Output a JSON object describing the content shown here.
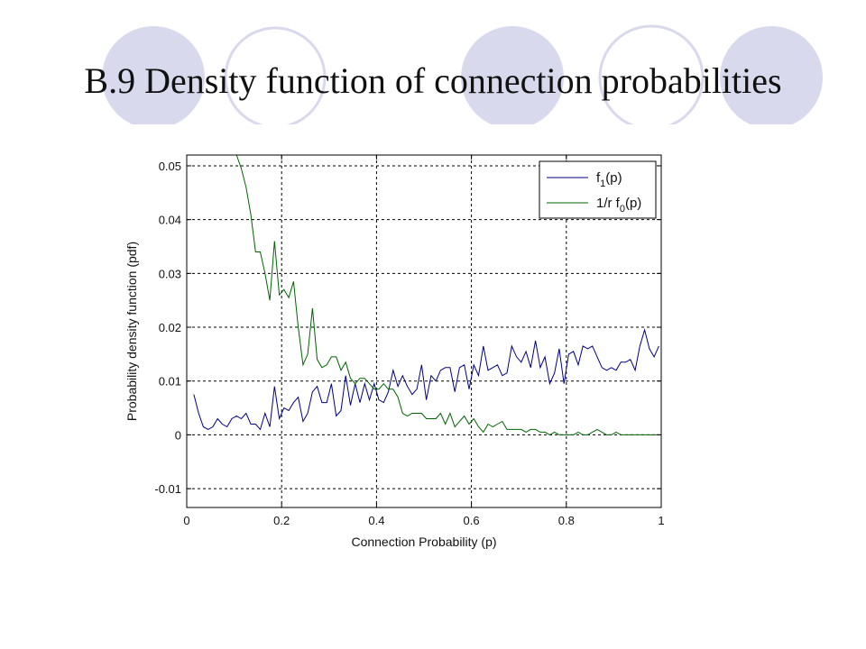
{
  "slide": {
    "title": "B.9 Density function of connection probabilities"
  },
  "decor": {
    "circle_fill": "#d9d9ee",
    "circle_outline": "#d9d9ee"
  },
  "chart_data": {
    "type": "line",
    "xlabel": "Connection Probability (p)",
    "ylabel": "Probability density function (pdf)",
    "xlim": [
      0,
      1
    ],
    "ylim": [
      -0.0135,
      0.052
    ],
    "xticks": [
      0,
      0.2,
      0.4,
      0.6,
      0.8,
      1
    ],
    "xtick_labels": [
      "0",
      "0.2",
      "0.4",
      "0.6",
      "0.8",
      "1"
    ],
    "yticks": [
      -0.01,
      0,
      0.01,
      0.02,
      0.03,
      0.04,
      0.05
    ],
    "ytick_labels": [
      "-0.01",
      "0",
      "0.01",
      "0.02",
      "0.03",
      "0.04",
      "0.05"
    ],
    "grid": true,
    "legend_position": "top-right",
    "series": [
      {
        "name": "f1(p)",
        "legend_main": "f",
        "legend_sub": "1",
        "legend_tail": "(p)",
        "color": "#000080",
        "x": [
          0.015,
          0.025,
          0.035,
          0.045,
          0.055,
          0.065,
          0.075,
          0.085,
          0.095,
          0.105,
          0.115,
          0.125,
          0.135,
          0.145,
          0.155,
          0.165,
          0.175,
          0.185,
          0.195,
          0.205,
          0.215,
          0.225,
          0.235,
          0.245,
          0.255,
          0.265,
          0.275,
          0.285,
          0.295,
          0.305,
          0.315,
          0.325,
          0.335,
          0.345,
          0.355,
          0.365,
          0.375,
          0.385,
          0.395,
          0.405,
          0.415,
          0.425,
          0.435,
          0.445,
          0.455,
          0.465,
          0.475,
          0.485,
          0.495,
          0.505,
          0.515,
          0.525,
          0.535,
          0.545,
          0.555,
          0.565,
          0.575,
          0.585,
          0.595,
          0.605,
          0.615,
          0.625,
          0.635,
          0.645,
          0.655,
          0.665,
          0.675,
          0.685,
          0.695,
          0.705,
          0.715,
          0.725,
          0.735,
          0.745,
          0.755,
          0.765,
          0.775,
          0.785,
          0.795,
          0.805,
          0.815,
          0.825,
          0.835,
          0.845,
          0.855,
          0.865,
          0.875,
          0.885,
          0.895,
          0.905,
          0.915,
          0.925,
          0.935,
          0.945,
          0.955,
          0.965,
          0.975,
          0.985,
          0.995
        ],
        "y": [
          0.0075,
          0.004,
          0.0015,
          0.001,
          0.0015,
          0.003,
          0.002,
          0.0015,
          0.003,
          0.0035,
          0.003,
          0.004,
          0.002,
          0.002,
          0.001,
          0.004,
          0.0015,
          0.009,
          0.003,
          0.005,
          0.0045,
          0.006,
          0.007,
          0.0025,
          0.004,
          0.008,
          0.009,
          0.006,
          0.006,
          0.0095,
          0.0035,
          0.0045,
          0.011,
          0.0055,
          0.0095,
          0.006,
          0.0095,
          0.0065,
          0.0095,
          0.0065,
          0.006,
          0.008,
          0.012,
          0.009,
          0.011,
          0.009,
          0.0075,
          0.0085,
          0.013,
          0.0065,
          0.011,
          0.01,
          0.012,
          0.0125,
          0.0125,
          0.008,
          0.0125,
          0.013,
          0.0085,
          0.013,
          0.011,
          0.0165,
          0.012,
          0.0125,
          0.013,
          0.011,
          0.0115,
          0.0165,
          0.0145,
          0.0135,
          0.0155,
          0.0125,
          0.0175,
          0.0125,
          0.0145,
          0.0095,
          0.0115,
          0.016,
          0.0095,
          0.015,
          0.0155,
          0.013,
          0.0165,
          0.016,
          0.0165,
          0.0145,
          0.0125,
          0.012,
          0.0125,
          0.012,
          0.0135,
          0.0135,
          0.014,
          0.012,
          0.0165,
          0.0195,
          0.016,
          0.0145,
          0.0165
        ],
        "draw_x": [
          0.015,
          0.02,
          0.03,
          0.04,
          0.05,
          0.06,
          0.07,
          0.08,
          0.09,
          0.1,
          0.11,
          0.12,
          0.13,
          0.14,
          0.15,
          0.16,
          0.17,
          0.18,
          0.19,
          0.2,
          0.21,
          0.22,
          0.23,
          0.24,
          0.25,
          0.26,
          0.27,
          0.28,
          0.29,
          0.3,
          0.31,
          0.32,
          0.33,
          0.34,
          0.35,
          0.36,
          0.37,
          0.38,
          0.39,
          0.4,
          0.41,
          0.42,
          0.43,
          0.44,
          0.45,
          0.46,
          0.47,
          0.48,
          0.49,
          0.5,
          0.51,
          0.52,
          0.53,
          0.54,
          0.55,
          0.56,
          0.57,
          0.58,
          0.59,
          0.6,
          0.61,
          0.62,
          0.63,
          0.64,
          0.65,
          0.66,
          0.67,
          0.68,
          0.69,
          0.7,
          0.71,
          0.72,
          0.73,
          0.74,
          0.75,
          0.76,
          0.77,
          0.78,
          0.79,
          0.8,
          0.81,
          0.82,
          0.83,
          0.84,
          0.85,
          0.86,
          0.87,
          0.88,
          0.89,
          0.9,
          0.91,
          0.92,
          0.93,
          0.94,
          0.95,
          0.96,
          0.97,
          0.98,
          0.99,
          1.0
        ]
      },
      {
        "name": "1/r f0(p)",
        "legend_main": "1/r f",
        "legend_sub": "0",
        "legend_tail": "(p)",
        "color": "#006400",
        "x": [
          0.105,
          0.115,
          0.125,
          0.135,
          0.145,
          0.155,
          0.165,
          0.175,
          0.185,
          0.195,
          0.205,
          0.215,
          0.225,
          0.235,
          0.245,
          0.255,
          0.265,
          0.275,
          0.285,
          0.295,
          0.305,
          0.315,
          0.325,
          0.335,
          0.345,
          0.355,
          0.365,
          0.375,
          0.385,
          0.395,
          0.405,
          0.415,
          0.425,
          0.435,
          0.445,
          0.455,
          0.465,
          0.475,
          0.485,
          0.495,
          0.505,
          0.515,
          0.525,
          0.535,
          0.545,
          0.555,
          0.565,
          0.575,
          0.585,
          0.595,
          0.605,
          0.615,
          0.625,
          0.635,
          0.645,
          0.655,
          0.665,
          0.675,
          0.685,
          0.695,
          0.705,
          0.715,
          0.725,
          0.735,
          0.745,
          0.755,
          0.765,
          0.775,
          0.785,
          0.795,
          0.805,
          0.815,
          0.825,
          0.835,
          0.845,
          0.855,
          0.865,
          0.875,
          0.885,
          0.895,
          0.905,
          0.915,
          0.925,
          0.935,
          0.945,
          0.955,
          0.965,
          0.975,
          0.985,
          0.995
        ],
        "y": [
          0.052,
          0.0495,
          0.046,
          0.041,
          0.034,
          0.034,
          0.03,
          0.025,
          0.036,
          0.026,
          0.027,
          0.0255,
          0.0285,
          0.02,
          0.013,
          0.015,
          0.0235,
          0.014,
          0.0125,
          0.013,
          0.0145,
          0.0145,
          0.012,
          0.0135,
          0.0105,
          0.0095,
          0.0105,
          0.0105,
          0.0095,
          0.0085,
          0.0085,
          0.0095,
          0.0085,
          0.0085,
          0.007,
          0.004,
          0.0035,
          0.004,
          0.004,
          0.004,
          0.003,
          0.003,
          0.003,
          0.004,
          0.002,
          0.004,
          0.0015,
          0.0025,
          0.0035,
          0.002,
          0.003,
          0.0015,
          0.0005,
          0.002,
          0.0015,
          0.002,
          0.0025,
          0.001,
          0.001,
          0.001,
          0.001,
          0.0005,
          0.001,
          0.001,
          0.0005,
          0.0005,
          0.0,
          0.0005,
          0.0,
          0.0,
          0.0,
          0.0,
          0.0005,
          0.0,
          0.0,
          0.0005,
          0.001,
          0.0005,
          0.0,
          0.0,
          0.0005,
          0.0,
          0.0,
          0.0,
          0.0,
          0.0,
          0.0,
          0.0,
          0.0,
          0.0
        ]
      }
    ]
  }
}
